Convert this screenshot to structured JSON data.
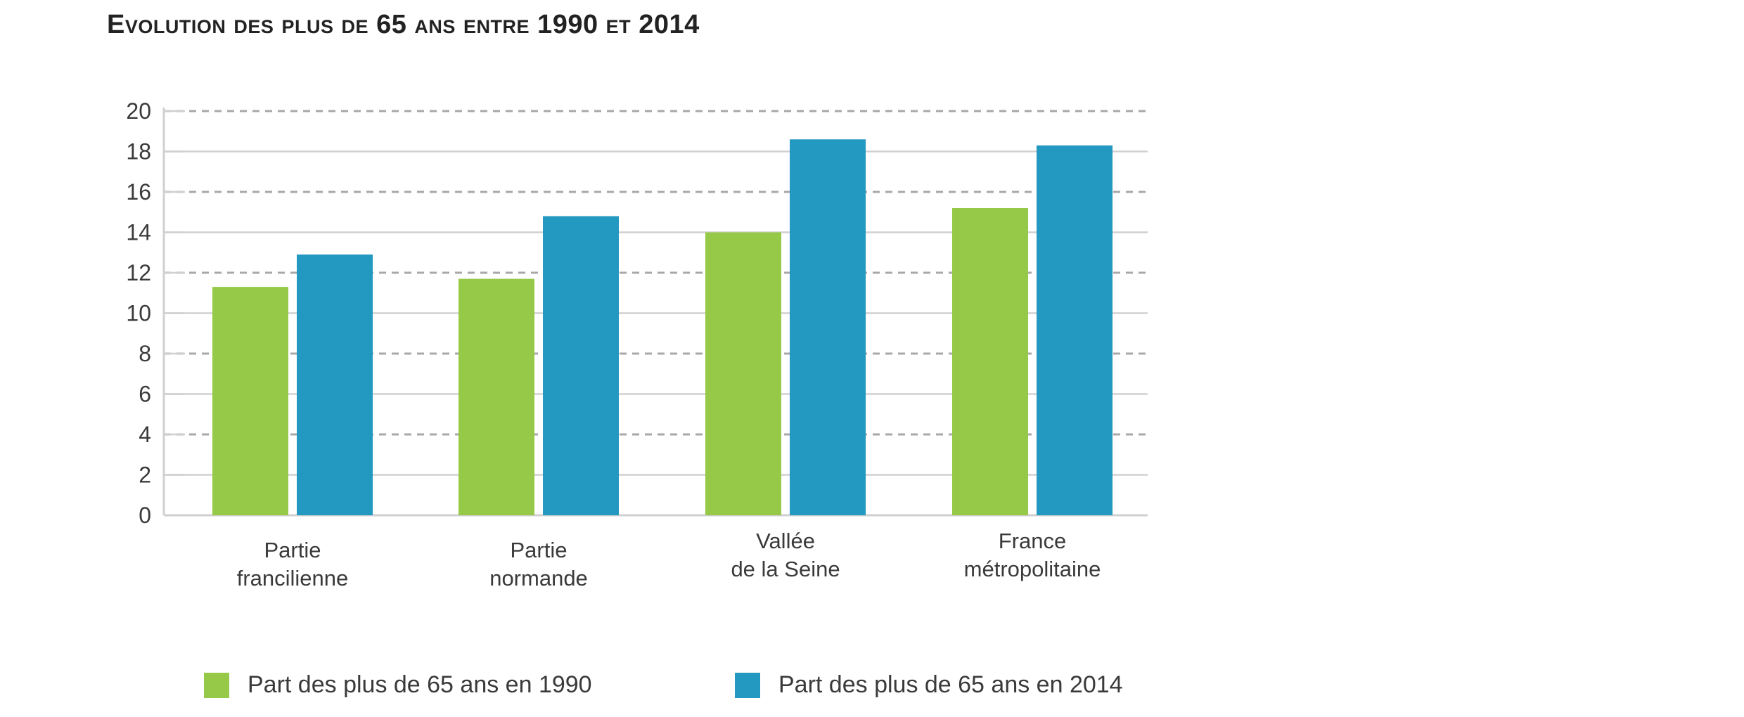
{
  "chart_data": {
    "type": "bar",
    "title": "Evolution des plus de 65 ans entre 1990 et 2014",
    "xlabel": "",
    "ylabel": "",
    "ylim": [
      0,
      20
    ],
    "yticks": [
      "0",
      "2",
      "4",
      "6",
      "8",
      "10",
      "12",
      "14",
      "16",
      "18",
      "20"
    ],
    "grid": true,
    "legend_position": "bottom",
    "categories": [
      [
        "Partie",
        "francilienne"
      ],
      [
        "Partie",
        "normande"
      ],
      [
        "Vallée",
        "de la Seine"
      ],
      [
        "France",
        "métropolitaine"
      ]
    ],
    "series": [
      {
        "name": "Part des plus de 65 ans en 1990",
        "color": "#95c947",
        "values": [
          11.3,
          11.7,
          14.0,
          15.2
        ]
      },
      {
        "name": "Part des plus de 65 ans en 2014",
        "color": "#2398c1",
        "values": [
          12.9,
          14.8,
          18.6,
          18.3
        ]
      }
    ]
  }
}
